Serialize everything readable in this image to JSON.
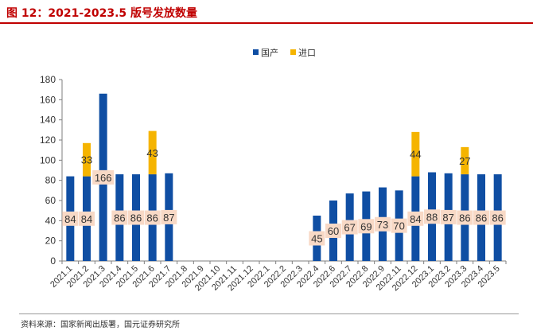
{
  "figure": {
    "title": "图 12：2021-2023.5 版号发放数量",
    "source": "资料来源：国家新闻出版署，国元证券研究所",
    "title_color": "#c00000"
  },
  "chart_data": {
    "type": "bar",
    "stacked": true,
    "title": "",
    "xlabel": "",
    "ylabel": "",
    "ylim": [
      0,
      180
    ],
    "yticks": [
      0,
      20,
      40,
      60,
      80,
      100,
      120,
      140,
      160,
      180
    ],
    "grid": false,
    "legend_position": "top-center",
    "categories": [
      "2021.1",
      "2021.2",
      "2021.3",
      "2021.4",
      "2021.5",
      "2021.6",
      "2021.7",
      "2021.8",
      "2021.9",
      "2021.10",
      "2021.11",
      "2021.12",
      "2022.1",
      "2022.2",
      "2022.3",
      "2022.4",
      "2022.6",
      "2022.7",
      "2022.8",
      "2022.9",
      "2022.11",
      "2022.12",
      "2023.1",
      "2023.2",
      "2023.3",
      "2023.4",
      "2023.5"
    ],
    "series": [
      {
        "name": "国产",
        "color": "#0f4ea3",
        "values": [
          84,
          84,
          166,
          86,
          86,
          86,
          87,
          0,
          0,
          0,
          0,
          0,
          0,
          0,
          0,
          45,
          60,
          67,
          69,
          73,
          70,
          84,
          88,
          87,
          86,
          86,
          86
        ],
        "labels": [
          "84",
          "84",
          "166",
          "86",
          "86",
          "86",
          "87",
          "",
          "",
          "",
          "",
          "",
          "",
          "",
          "",
          "45",
          "60",
          "67",
          "69",
          "73",
          "70",
          "84",
          "88",
          "87",
          "86",
          "86",
          "86"
        ]
      },
      {
        "name": "进口",
        "color": "#f5b400",
        "values": [
          0,
          33,
          0,
          0,
          0,
          43,
          0,
          0,
          0,
          0,
          0,
          0,
          0,
          0,
          0,
          0,
          0,
          0,
          0,
          0,
          0,
          44,
          0,
          0,
          27,
          0,
          0
        ],
        "labels": [
          "",
          "33",
          "",
          "",
          "",
          "43",
          "",
          "",
          "",
          "",
          "",
          "",
          "",
          "",
          "",
          "",
          "",
          "",
          "",
          "",
          "",
          "44",
          "",
          "",
          "27",
          "",
          ""
        ]
      }
    ],
    "label_box_color": "#f8d9c6"
  }
}
